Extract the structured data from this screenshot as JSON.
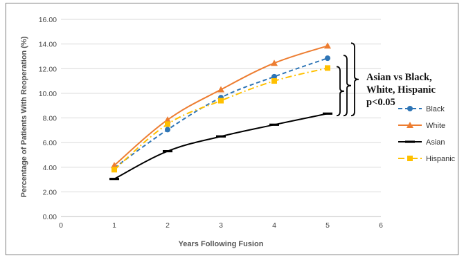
{
  "chart_data": {
    "type": "line",
    "xlabel": "Years Following Fusion",
    "ylabel": "Percentage of Patients With Reoperation (%)",
    "x_ticks": [
      "0",
      "1",
      "2",
      "3",
      "4",
      "5",
      "6"
    ],
    "y_ticks": [
      "0.00",
      "2.00",
      "4.00",
      "6.00",
      "8.00",
      "10.00",
      "12.00",
      "14.00",
      "16.00"
    ],
    "xlim": [
      0,
      6
    ],
    "ylim": [
      0,
      16
    ],
    "grid": "horizontal",
    "legend_position": "right",
    "x": [
      1,
      2,
      3,
      4,
      5
    ],
    "series": [
      {
        "name": "Black",
        "values": [
          3.95,
          7.05,
          9.65,
          11.35,
          12.85
        ],
        "color": "#2e75b6",
        "style": "dashed",
        "marker": "circle"
      },
      {
        "name": "White",
        "values": [
          4.15,
          7.85,
          10.3,
          12.45,
          13.85
        ],
        "color": "#ed7d31",
        "style": "solid",
        "marker": "triangle"
      },
      {
        "name": "Asian",
        "values": [
          3.05,
          5.3,
          6.5,
          7.45,
          8.35
        ],
        "color": "#000000",
        "style": "solid",
        "marker": "dash"
      },
      {
        "name": "Hispanic",
        "values": [
          3.8,
          7.5,
          9.4,
          11.0,
          12.05
        ],
        "color": "#ffc000",
        "style": "dashdot",
        "marker": "square"
      }
    ],
    "annotation": [
      "Asian vs Black,",
      "White, Hispanic",
      "p<0.05"
    ]
  }
}
